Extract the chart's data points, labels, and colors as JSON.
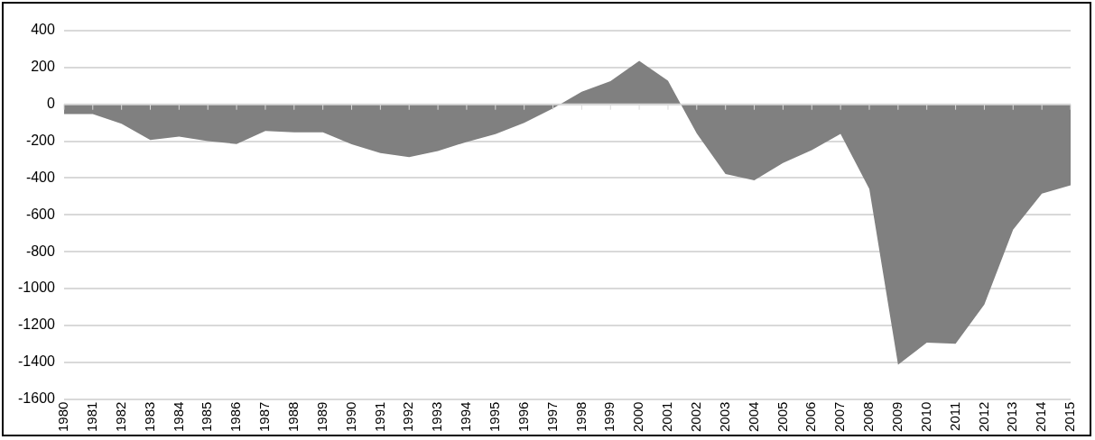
{
  "chart_data": {
    "type": "area",
    "categories": [
      "1980",
      "1981",
      "1982",
      "1983",
      "1984",
      "1985",
      "1986",
      "1987",
      "1988",
      "1989",
      "1990",
      "1991",
      "1992",
      "1993",
      "1994",
      "1995",
      "1996",
      "1997",
      "1998",
      "1999",
      "2000",
      "2001",
      "2002",
      "2003",
      "2004",
      "2005",
      "2006",
      "2007",
      "2008",
      "2009",
      "2010",
      "2011",
      "2012",
      "2013",
      "2014",
      "2015"
    ],
    "series": [
      {
        "color": "#808080",
        "values": [
          -53,
          -53,
          -105,
          -194,
          -175,
          -200,
          -215,
          -145,
          -152,
          -152,
          -217,
          -265,
          -286,
          -253,
          -204,
          -162,
          -101,
          -22,
          69,
          126,
          236,
          128,
          -158,
          -378,
          -413,
          -318,
          -248,
          -161,
          -459,
          -1413,
          -1294,
          -1300,
          -1087,
          -680,
          -485,
          -439
        ]
      }
    ],
    "ylim": [
      -1600,
      400
    ],
    "yticks": [
      -1600,
      -1400,
      -1200,
      -1000,
      -800,
      -600,
      -400,
      -200,
      0,
      200,
      400
    ],
    "grid": "y",
    "legend": false
  }
}
